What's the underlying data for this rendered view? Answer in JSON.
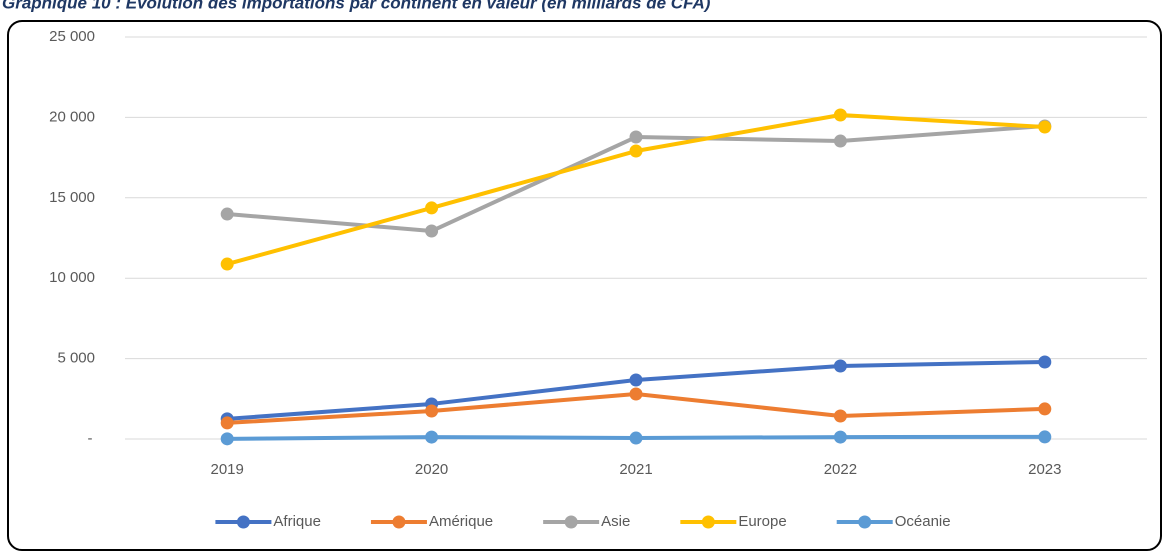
{
  "chart_data": {
    "type": "line",
    "title": "Graphique 10 : Evolution des importations par continent en valeur (en milliards de CFA)",
    "categories": [
      "2019",
      "2020",
      "2021",
      "2022",
      "2023"
    ],
    "series": [
      {
        "name": "Afrique",
        "color": "#4472c4",
        "values": [
          1250,
          2180,
          3670,
          4540,
          4790
        ]
      },
      {
        "name": "Amérique",
        "color": "#ed7d31",
        "values": [
          1000,
          1740,
          2800,
          1430,
          1870
        ]
      },
      {
        "name": "Asie",
        "color": "#a5a5a5",
        "values": [
          13990,
          12935,
          18780,
          18530,
          19465
        ]
      },
      {
        "name": "Europe",
        "color": "#ffc000",
        "values": [
          10880,
          14370,
          17910,
          20150,
          19400
        ]
      },
      {
        "name": "Océanie",
        "color": "#5b9bd5",
        "values": [
          10,
          120,
          60,
          120,
          130
        ]
      }
    ],
    "ylim": [
      0,
      25000
    ],
    "yticks": [
      {
        "value": 0,
        "label": "-"
      },
      {
        "value": 5000,
        "label": "5 000"
      },
      {
        "value": 10000,
        "label": "10 000"
      },
      {
        "value": 15000,
        "label": "15 000"
      },
      {
        "value": 20000,
        "label": "20 000"
      },
      {
        "value": 25000,
        "label": "25 000"
      }
    ],
    "grid": true,
    "legend": "bottom"
  }
}
